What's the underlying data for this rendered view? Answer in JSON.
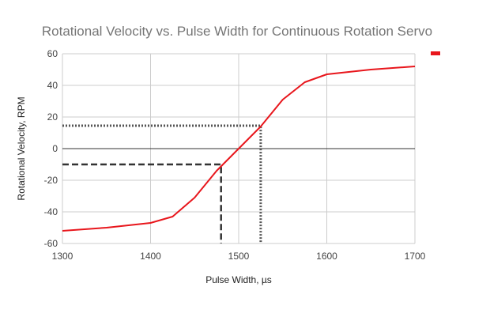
{
  "chart_data": {
    "type": "line",
    "title": "Rotational Velocity vs. Pulse Width for Continuous Rotation Servo",
    "xlabel": "Pulse Width, µs",
    "ylabel": "Rotational Velocity, RPM",
    "xlim": [
      1300,
      1700
    ],
    "ylim": [
      -60,
      60
    ],
    "x_ticks": [
      1300,
      1400,
      1500,
      1600,
      1700
    ],
    "y_ticks": [
      -60,
      -40,
      -20,
      0,
      20,
      40,
      60
    ],
    "x_tick_labels": [
      "1300",
      "1400",
      "1500",
      "1600",
      "1700"
    ],
    "y_tick_labels": [
      "-60",
      "-40",
      "-20",
      "0",
      "20",
      "40",
      "60"
    ],
    "grid": true,
    "legend_position": "top-right",
    "series": [
      {
        "color": "#e8161c",
        "x": [
          1300,
          1350,
          1400,
          1425,
          1450,
          1475,
          1500,
          1525,
          1550,
          1575,
          1600,
          1650,
          1700
        ],
        "y": [
          -52,
          -50,
          -47,
          -43,
          -31,
          -14,
          0,
          14,
          31,
          42,
          47,
          50,
          52
        ]
      }
    ],
    "annotations": [
      {
        "style": "dashed",
        "x": 1480,
        "y": -10,
        "color": "#333333"
      },
      {
        "style": "dotted",
        "x": 1525,
        "y": 14.5,
        "color": "#555555"
      }
    ]
  }
}
